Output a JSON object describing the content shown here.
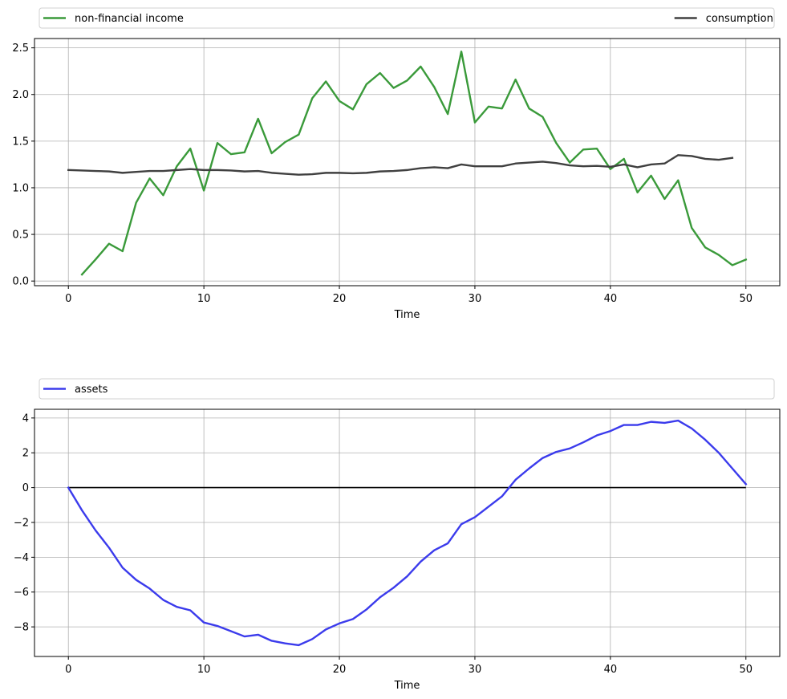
{
  "chart_data": [
    {
      "type": "line",
      "xlabel": "Time",
      "ylabel": "",
      "xlim": [
        -2.5,
        52.5
      ],
      "ylim": [
        -0.05,
        2.6
      ],
      "xticks": [
        0,
        10,
        20,
        30,
        40,
        50
      ],
      "yticks": [
        0.0,
        0.5,
        1.0,
        1.5,
        2.0,
        2.5
      ],
      "ytick_labels": [
        "0.0",
        "0.5",
        "1.0",
        "1.5",
        "2.0",
        "2.5"
      ],
      "grid": true,
      "legend": "above-axes, expanded, 2 columns",
      "series": [
        {
          "name": "non-financial income",
          "color": "#3a9a3a",
          "x": [
            1,
            2,
            3,
            4,
            5,
            6,
            7,
            8,
            9,
            10,
            11,
            12,
            13,
            14,
            15,
            16,
            17,
            18,
            19,
            20,
            21,
            22,
            23,
            24,
            25,
            26,
            27,
            28,
            29,
            30,
            31,
            32,
            33,
            34,
            35,
            36,
            37,
            38,
            39,
            40,
            41,
            42,
            43,
            44,
            45,
            46,
            47,
            48,
            49,
            50
          ],
          "values": [
            0.07,
            0.23,
            0.4,
            0.32,
            0.84,
            1.1,
            0.92,
            1.23,
            1.42,
            0.97,
            1.48,
            1.36,
            1.38,
            1.74,
            1.37,
            1.49,
            1.57,
            1.96,
            2.14,
            1.93,
            1.84,
            2.11,
            2.23,
            2.07,
            2.15,
            2.3,
            2.08,
            1.79,
            2.46,
            1.7,
            1.87,
            1.85,
            2.16,
            1.85,
            1.76,
            1.48,
            1.27,
            1.41,
            1.42,
            1.2,
            1.31,
            0.95,
            1.13,
            0.88,
            1.08,
            0.57,
            0.36,
            0.28,
            0.17,
            0.23
          ]
        },
        {
          "name": "consumption",
          "color": "#404040",
          "x": [
            0,
            1,
            2,
            3,
            4,
            5,
            6,
            7,
            8,
            9,
            10,
            11,
            12,
            13,
            14,
            15,
            16,
            17,
            18,
            19,
            20,
            21,
            22,
            23,
            24,
            25,
            26,
            27,
            28,
            29,
            30,
            31,
            32,
            33,
            34,
            35,
            36,
            37,
            38,
            39,
            40,
            41,
            42,
            43,
            44,
            45,
            46,
            47,
            48,
            49
          ],
          "values": [
            1.19,
            1.185,
            1.18,
            1.175,
            1.16,
            1.17,
            1.18,
            1.18,
            1.19,
            1.2,
            1.19,
            1.19,
            1.185,
            1.175,
            1.18,
            1.16,
            1.15,
            1.14,
            1.145,
            1.16,
            1.16,
            1.155,
            1.16,
            1.175,
            1.18,
            1.19,
            1.21,
            1.22,
            1.21,
            1.25,
            1.23,
            1.23,
            1.23,
            1.26,
            1.27,
            1.28,
            1.265,
            1.24,
            1.23,
            1.235,
            1.225,
            1.25,
            1.22,
            1.25,
            1.26,
            1.35,
            1.34,
            1.31,
            1.3,
            1.32
          ]
        }
      ]
    },
    {
      "type": "line",
      "xlabel": "Time",
      "ylabel": "",
      "xlim": [
        -2.5,
        52.5
      ],
      "ylim": [
        -9.7,
        4.5
      ],
      "xticks": [
        0,
        10,
        20,
        30,
        40,
        50
      ],
      "yticks": [
        -8,
        -6,
        -4,
        -2,
        0,
        2,
        4
      ],
      "ytick_labels": [
        "−8",
        "−6",
        "−4",
        "−2",
        "0",
        "2",
        "4"
      ],
      "grid": true,
      "legend": "above-axes, expanded",
      "zero_line": true,
      "series": [
        {
          "name": "assets",
          "color": "#3b3bec",
          "x": [
            0,
            1,
            2,
            3,
            4,
            5,
            6,
            7,
            8,
            9,
            10,
            11,
            12,
            13,
            14,
            15,
            16,
            17,
            18,
            19,
            20,
            21,
            22,
            23,
            24,
            25,
            26,
            27,
            28,
            29,
            30,
            31,
            32,
            33,
            34,
            35,
            36,
            37,
            38,
            39,
            40,
            41,
            42,
            43,
            44,
            45,
            46,
            47,
            48,
            49,
            50
          ],
          "values": [
            0,
            -1.3,
            -2.45,
            -3.45,
            -4.6,
            -5.3,
            -5.8,
            -6.45,
            -6.85,
            -7.05,
            -7.75,
            -7.95,
            -8.25,
            -8.55,
            -8.45,
            -8.8,
            -8.95,
            -9.05,
            -8.7,
            -8.15,
            -7.8,
            -7.55,
            -7.0,
            -6.3,
            -5.75,
            -5.1,
            -4.25,
            -3.6,
            -3.2,
            -2.1,
            -1.7,
            -1.1,
            -0.5,
            0.45,
            1.1,
            1.7,
            2.05,
            2.25,
            2.6,
            3.0,
            3.25,
            3.6,
            3.6,
            3.78,
            3.72,
            3.85,
            3.4,
            2.75,
            2.0,
            1.1,
            0.2
          ]
        }
      ]
    }
  ]
}
